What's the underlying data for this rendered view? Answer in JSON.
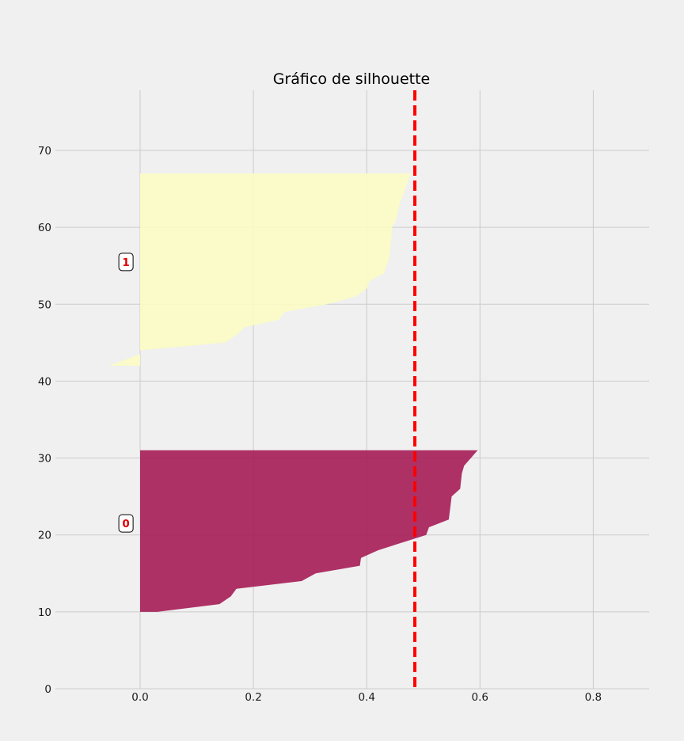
{
  "chart_data": {
    "type": "area",
    "title": "Gráfico de silhouette",
    "xlabel": "",
    "ylabel": "",
    "xlim": [
      -0.15,
      0.9
    ],
    "ylim": [
      0,
      78
    ],
    "xticks": [
      0.0,
      0.2,
      0.4,
      0.6,
      0.8
    ],
    "xtick_labels": [
      "0.0",
      "0.2",
      "0.4",
      "0.6",
      "0.8"
    ],
    "yticks": [
      0,
      10,
      20,
      30,
      40,
      50,
      60,
      70
    ],
    "ytick_labels": [
      "0",
      "10",
      "20",
      "30",
      "40",
      "50",
      "60",
      "70"
    ],
    "grid": true,
    "average_silhouette": 0.485,
    "clusters": [
      {
        "label": "0",
        "label_position": [
          -0.025,
          21.5
        ],
        "color": "#a51c55",
        "y_range": [
          10,
          31
        ],
        "profile": [
          [
            0.03,
            10
          ],
          [
            0.14,
            11
          ],
          [
            0.16,
            12
          ],
          [
            0.17,
            13
          ],
          [
            0.285,
            14
          ],
          [
            0.31,
            15
          ],
          [
            0.388,
            16
          ],
          [
            0.39,
            17
          ],
          [
            0.42,
            18
          ],
          [
            0.505,
            20
          ],
          [
            0.51,
            21
          ],
          [
            0.545,
            22
          ],
          [
            0.55,
            25
          ],
          [
            0.565,
            26
          ],
          [
            0.568,
            28
          ],
          [
            0.572,
            29
          ],
          [
            0.596,
            31
          ]
        ]
      },
      {
        "label": "1",
        "label_position": [
          -0.025,
          55.5
        ],
        "color": "#fbfcc3",
        "y_range": [
          42,
          67
        ],
        "profile": [
          [
            -0.055,
            42
          ],
          [
            0.0,
            43.5
          ],
          [
            0.0,
            44
          ],
          [
            0.15,
            45
          ],
          [
            0.17,
            46
          ],
          [
            0.185,
            47
          ],
          [
            0.245,
            48
          ],
          [
            0.255,
            49
          ],
          [
            0.33,
            50
          ],
          [
            0.38,
            51
          ],
          [
            0.4,
            52
          ],
          [
            0.405,
            53
          ],
          [
            0.43,
            54
          ],
          [
            0.44,
            56
          ],
          [
            0.445,
            60
          ],
          [
            0.452,
            61
          ],
          [
            0.458,
            63
          ],
          [
            0.478,
            67
          ]
        ]
      }
    ]
  }
}
